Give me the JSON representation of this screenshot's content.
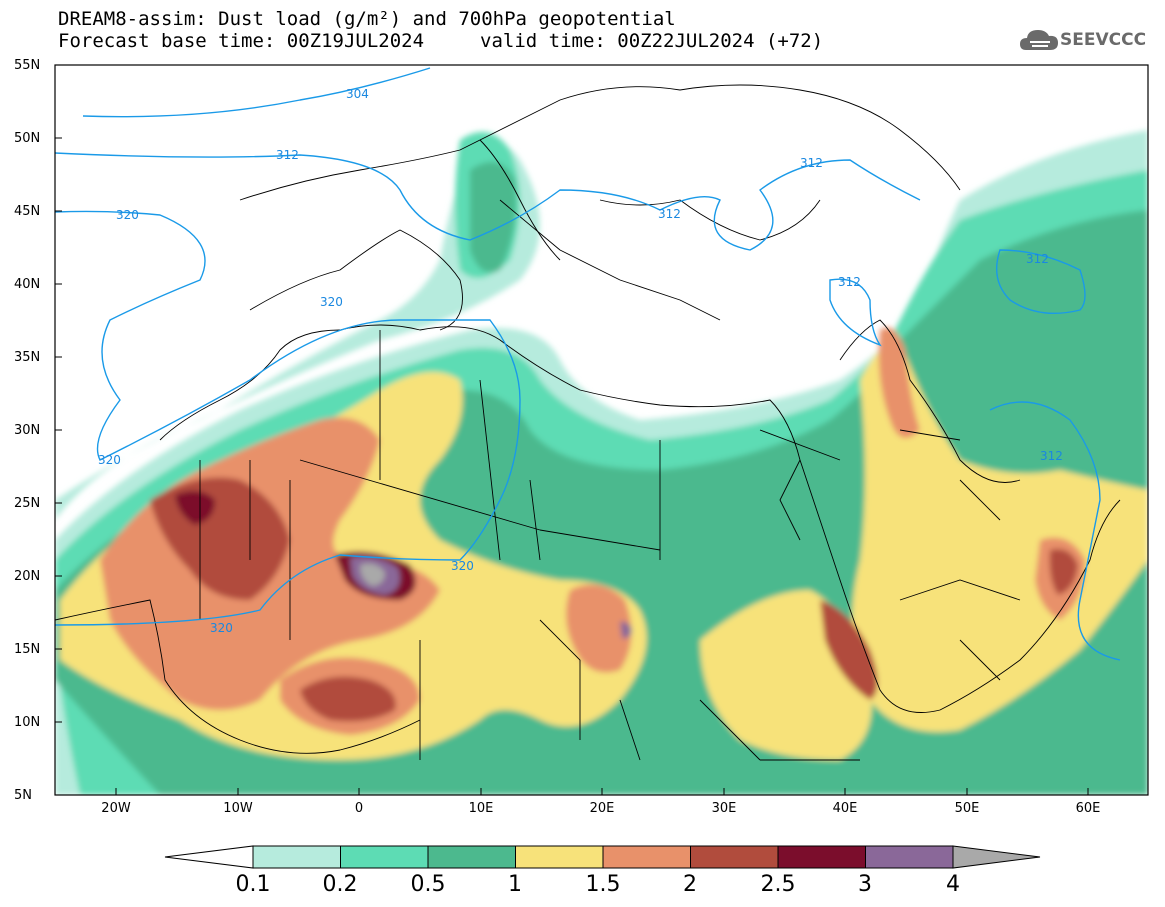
{
  "header": {
    "title_line1": "DREAM8-assim: Dust load (g/m²) and 700hPa geopotential",
    "title_line2": "Forecast base time: 00Z19JUL2024",
    "valid_time": "valid time: 00Z22JUL2024 (+72)"
  },
  "logo": {
    "text": "SEEVCCC",
    "icon": "cloud-logo-icon"
  },
  "axes": {
    "lat_labels": [
      "55N",
      "50N",
      "45N",
      "40N",
      "35N",
      "30N",
      "25N",
      "20N",
      "15N",
      "10N",
      "5N"
    ],
    "lon_labels": [
      "20W",
      "10W",
      "0",
      "10E",
      "20E",
      "30E",
      "40E",
      "50E",
      "60E"
    ]
  },
  "contours": {
    "labels": [
      "304",
      "312",
      "312",
      "312",
      "312",
      "312",
      "320",
      "320",
      "320",
      "320",
      "320"
    ],
    "color": "#1a9ae8"
  },
  "colorbar": {
    "labels": [
      "0.1",
      "0.2",
      "0.5",
      "1",
      "1.5",
      "2",
      "2.5",
      "3",
      "4"
    ],
    "colors": [
      "#b6ebdd",
      "#5ddcb4",
      "#4cb98e",
      "#f7e27a",
      "#e8916a",
      "#b14c3d",
      "#7b0d2c",
      "#8a6899",
      "#a9a9a9"
    ]
  },
  "chart_data": {
    "type": "heatmap",
    "title": "DREAM8-assim: Dust load (g/m²) and 700hPa geopotential",
    "xlabel": "",
    "ylabel": "",
    "x_range": [
      "25W",
      "65E"
    ],
    "y_range": [
      "5N",
      "55N"
    ],
    "levels": [
      0.1,
      0.2,
      0.5,
      1,
      1.5,
      2,
      2.5,
      3,
      4
    ],
    "max_regions": [
      "Mali/Algeria border ~1E 20N (>4)",
      "Central Sudan/Chad ~22E 16N (>3)",
      "Mauritania ~13W 25N (>3)"
    ],
    "geopotential_contours": [
      304,
      312,
      320
    ]
  }
}
